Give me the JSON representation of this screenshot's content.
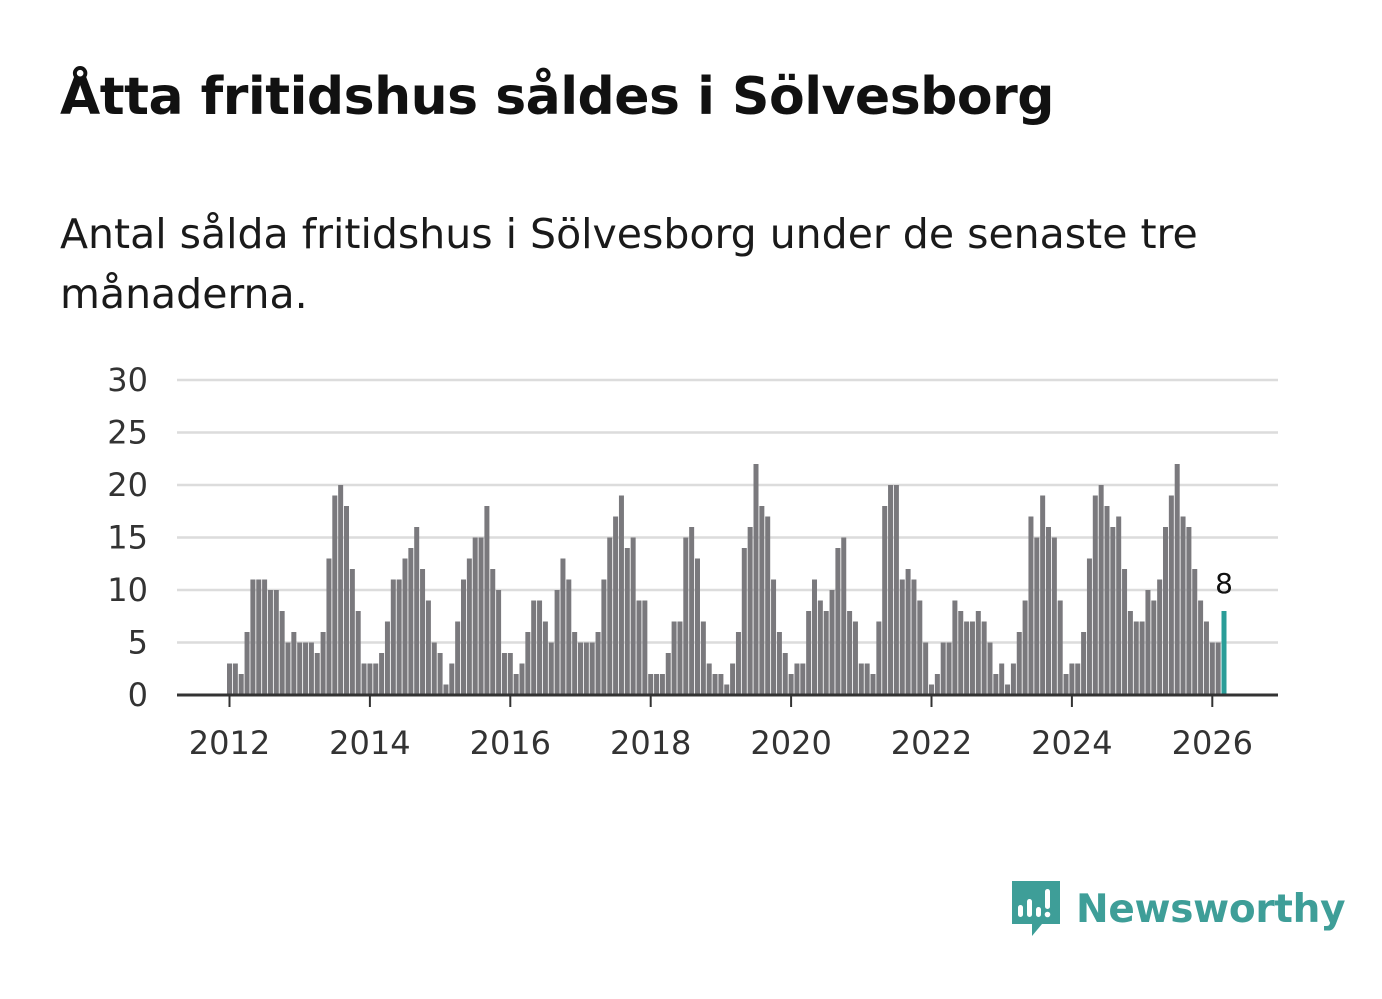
{
  "header": {
    "title": "Åtta fritidshus såldes i Sölvesborg",
    "subtitle": "Antal sålda fritidshus i Sölvesborg under de senaste tre månaderna."
  },
  "brand": {
    "name": "Newsworthy"
  },
  "colors": {
    "bar": "#7a797d",
    "highlight": "#2a9d98",
    "grid": "#dcdcdc",
    "axis": "#333333",
    "brand": "#3e9e98"
  },
  "chart_data": {
    "type": "bar",
    "title": "Åtta fritidshus såldes i Sölvesborg",
    "xlabel": "",
    "ylabel": "",
    "ylim": [
      0,
      30
    ],
    "yticks": [
      "0",
      "5",
      "10",
      "15",
      "20",
      "25",
      "30"
    ],
    "xticks": [
      "2012",
      "2014",
      "2016",
      "2018",
      "2020",
      "2022",
      "2024",
      "2026"
    ],
    "start": "2012-01",
    "frequency": "monthly",
    "values": [
      3,
      3,
      2,
      6,
      11,
      11,
      11,
      10,
      10,
      8,
      5,
      6,
      5,
      5,
      5,
      4,
      6,
      13,
      19,
      20,
      18,
      12,
      8,
      3,
      3,
      3,
      4,
      7,
      11,
      11,
      13,
      14,
      16,
      12,
      9,
      5,
      4,
      1,
      3,
      7,
      11,
      13,
      15,
      15,
      18,
      12,
      10,
      4,
      4,
      2,
      3,
      6,
      9,
      9,
      7,
      5,
      10,
      13,
      11,
      6,
      5,
      5,
      5,
      6,
      11,
      15,
      17,
      19,
      14,
      15,
      9,
      9,
      2,
      2,
      2,
      4,
      7,
      7,
      15,
      16,
      13,
      7,
      3,
      2,
      2,
      1,
      3,
      6,
      14,
      16,
      22,
      18,
      17,
      11,
      6,
      4,
      2,
      3,
      3,
      8,
      11,
      9,
      8,
      10,
      14,
      15,
      8,
      7,
      3,
      3,
      2,
      7,
      18,
      20,
      20,
      11,
      12,
      11,
      9,
      5,
      1,
      2,
      5,
      5,
      9,
      8,
      7,
      7,
      8,
      7,
      5,
      2,
      3,
      1,
      3,
      6,
      9,
      17,
      15,
      19,
      16,
      15,
      9,
      2,
      3,
      3,
      6,
      13,
      19,
      20,
      18,
      16,
      17,
      12,
      8,
      7,
      7,
      10,
      9,
      11,
      16,
      19,
      22,
      17,
      16,
      12,
      9,
      7,
      5,
      5,
      8
    ],
    "highlight": {
      "label": "8",
      "value": 8,
      "period": "2026-03"
    }
  }
}
